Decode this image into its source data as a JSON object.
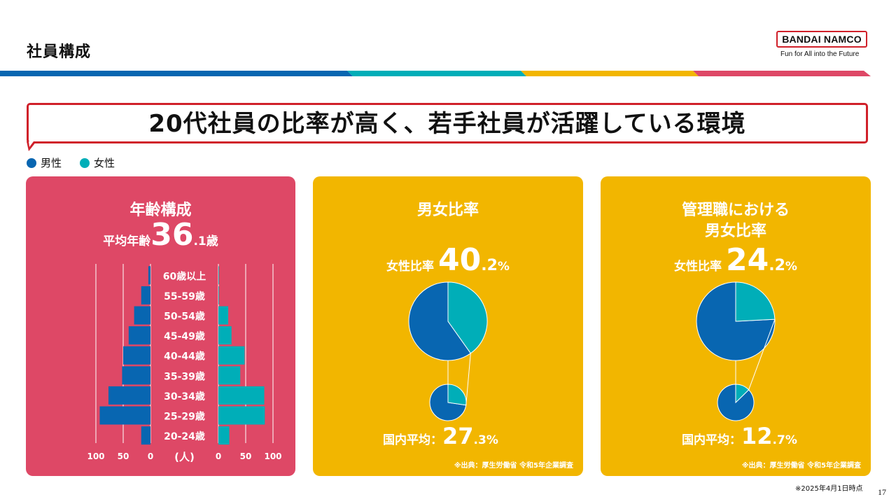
{
  "page": {
    "title": "社員構成",
    "headline": "20代社員の比率が高く、若手社員が活躍している環境",
    "footnote": "※2025年4月1日時点",
    "page_number": "17"
  },
  "logo": {
    "brand": "BANDAI NAMCO",
    "tagline": "Fun for All into the Future"
  },
  "colors": {
    "male": "#0866b1",
    "female": "#00aeb8",
    "panel_red": "#de4866",
    "panel_yellow": "#f2b600",
    "accent_red": "#d0202a"
  },
  "legend": [
    {
      "label": "男性",
      "color": "#0866b1"
    },
    {
      "label": "女性",
      "color": "#00aeb8"
    }
  ],
  "age_panel": {
    "title": "年齢構成",
    "avg_prefix": "平均年齢",
    "avg_int": "36",
    "avg_dec": ".1",
    "avg_unit": "歳",
    "unit_label": "(人)",
    "male_ticks": [
      "100",
      "50",
      "0"
    ],
    "female_ticks": [
      "0",
      "50",
      "100"
    ]
  },
  "gender_panel": {
    "title": "男女比率",
    "ratio_label": "女性比率",
    "ratio_int": "40",
    "ratio_dec": ".2",
    "ratio_unit": "%",
    "national_label": "国内平均：",
    "national_int": "27",
    "national_dec": ".3",
    "national_unit": "%",
    "source": "※出典：厚生労働省 令和5年企業調査"
  },
  "mgmt_panel": {
    "title_line1": "管理職における",
    "title_line2": "男女比率",
    "ratio_label": "女性比率",
    "ratio_int": "24",
    "ratio_dec": ".2",
    "ratio_unit": "%",
    "national_label": "国内平均：",
    "national_int": "12",
    "national_dec": ".7",
    "national_unit": "%",
    "source": "※出典：厚生労働省 令和5年企業調査"
  },
  "chart_data": [
    {
      "type": "bar",
      "orientation": "horizontal",
      "title": "年齢構成",
      "xlabel": "(人)",
      "categories": [
        "60歳以上",
        "55-59歳",
        "50-54歳",
        "45-49歳",
        "40-44歳",
        "35-39歳",
        "30-34歳",
        "25-29歳",
        "20-24歳"
      ],
      "series": [
        {
          "name": "男性",
          "values": [
            4,
            17,
            30,
            40,
            50,
            52,
            77,
            93,
            17
          ]
        },
        {
          "name": "女性",
          "values": [
            1,
            1,
            18,
            24,
            48,
            40,
            84,
            85,
            20
          ]
        }
      ],
      "xlim": [
        0,
        100
      ]
    },
    {
      "type": "pie",
      "title": "男女比率",
      "labels": [
        "男性",
        "女性"
      ],
      "values": [
        59.8,
        40.2
      ]
    },
    {
      "type": "pie",
      "title": "国内平均",
      "labels": [
        "男性",
        "女性"
      ],
      "values": [
        72.7,
        27.3
      ]
    },
    {
      "type": "pie",
      "title": "管理職における男女比率",
      "labels": [
        "男性",
        "女性"
      ],
      "values": [
        75.8,
        24.2
      ]
    },
    {
      "type": "pie",
      "title": "国内平均",
      "labels": [
        "男性",
        "女性"
      ],
      "values": [
        87.3,
        12.7
      ]
    }
  ]
}
